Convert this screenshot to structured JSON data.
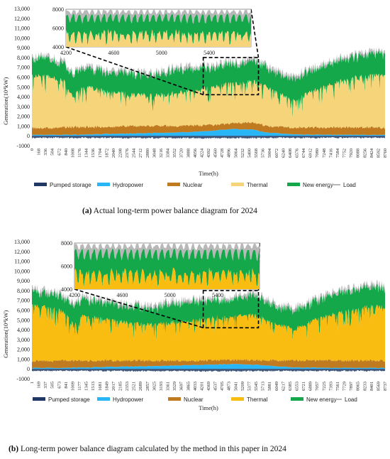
{
  "colors": {
    "pumped_storage": "#1f3864",
    "hydropower": "#29b6f6",
    "nuclear": "#c07a1f",
    "thermal_a": "#f6d57a",
    "thermal_b": "#f9bd12",
    "new_energy": "#14a84a",
    "load": "#b8b8b8"
  },
  "chart_data": [
    {
      "type": "area",
      "caption_label": "(a)",
      "caption_text": " Actual long-term power balance diagram for 2024",
      "ylabel": "Generation(10⁴kW)",
      "xlabel": "Time(h)",
      "ylim": [
        -1000,
        13000
      ],
      "yticks": [
        "13,000",
        "12,000",
        "11,000",
        "10,000",
        "9,000",
        "8,000",
        "7,000",
        "6,000",
        "5,000",
        "4,000",
        "3,000",
        "2,000",
        "1,000",
        "0",
        "-1000"
      ],
      "xticks": [
        "0",
        "168",
        "336",
        "504",
        "672",
        "840",
        "1008",
        "1176",
        "1344",
        "1536",
        "1704",
        "1872",
        "2040",
        "2208",
        "2376",
        "2544",
        "2712",
        "2880",
        "3048",
        "3216",
        "3384",
        "3552",
        "3720",
        "3888",
        "4056",
        "4224",
        "4392",
        "4560",
        "4728",
        "4896",
        "5064",
        "5232",
        "5400",
        "5568",
        "5736",
        "5904",
        "6072",
        "6240",
        "6408",
        "6576",
        "6744",
        "6912",
        "7080",
        "7248",
        "7416",
        "7584",
        "7752",
        "7920",
        "8088",
        "8256",
        "8424",
        "8592",
        "8760"
      ],
      "inset": {
        "yticks": [
          "8000",
          "6000",
          "4000"
        ],
        "xticks": [
          "4200",
          "4600",
          "5000",
          "5400"
        ],
        "ylim": [
          4000,
          8000
        ],
        "xlim": [
          4200,
          5750
        ]
      },
      "zoom_window": {
        "x": [
          4250,
          5620
        ],
        "y": [
          4200,
          8000
        ]
      },
      "legend": [
        "Pumped storage",
        "Hydropower",
        "Nuclear",
        "Thermal",
        "New energy",
        "Load"
      ],
      "series_profile": {
        "hours": [
          0,
          500,
          800,
          1000,
          1300,
          1800,
          2500,
          3000,
          3500,
          4000,
          4500,
          5000,
          5500,
          5800,
          6200,
          6500,
          7000,
          7500,
          8000,
          8500,
          8760
        ],
        "load": [
          8300,
          8100,
          7600,
          6500,
          7200,
          6800,
          6600,
          6500,
          7000,
          7200,
          7300,
          7600,
          8000,
          7300,
          6500,
          6200,
          7000,
          7900,
          8300,
          8700,
          8400
        ],
        "thermal_top": [
          6200,
          6000,
          5500,
          4000,
          5000,
          4600,
          4200,
          4100,
          4300,
          4600,
          5000,
          5300,
          5600,
          5000,
          4200,
          3600,
          4600,
          5400,
          5900,
          6200,
          6000
        ],
        "nuclear_top": [
          800,
          800,
          900,
          900,
          900,
          900,
          1000,
          1000,
          1000,
          1050,
          1100,
          1300,
          1350,
          1000,
          900,
          850,
          850,
          850,
          850,
          850,
          800
        ],
        "hydro_top": [
          60,
          60,
          60,
          70,
          80,
          150,
          200,
          250,
          300,
          350,
          500,
          650,
          600,
          300,
          200,
          100,
          80,
          60,
          60,
          60,
          60
        ],
        "pumped_min": [
          -120,
          -120,
          -120,
          -120,
          -130,
          -130,
          -140,
          -140,
          -140,
          -150,
          -150,
          -150,
          -150,
          -140,
          -130,
          -130,
          -130,
          -120,
          -120,
          -120,
          -120
        ]
      }
    },
    {
      "type": "area",
      "caption_label": "(b)",
      "caption_text": " Long-term power balance diagram calculated by the method in this paper in 2024",
      "ylabel": "Generation(10⁴kW)",
      "xlabel": "Time(h)",
      "ylim": [
        -1000,
        13000
      ],
      "yticks": [
        "13,000",
        "12,000",
        "11,000",
        "10,000",
        "9,000",
        "8,000",
        "7,000",
        "6,000",
        "5,000",
        "4,000",
        "3,000",
        "2,000",
        "1,000",
        "0",
        "-1000"
      ],
      "xticks": [
        "1",
        "169",
        "337",
        "505",
        "673",
        "841",
        "1009",
        "1177",
        "1345",
        "1513",
        "1681",
        "1849",
        "2017",
        "2185",
        "2353",
        "2521",
        "2689",
        "2857",
        "3025",
        "3193",
        "3361",
        "3529",
        "3697",
        "3865",
        "4033",
        "4201",
        "4369",
        "4537",
        "4705",
        "4873",
        "5041",
        "5209",
        "5377",
        "5545",
        "5713",
        "5881",
        "6049",
        "6217",
        "6385",
        "6553",
        "6721",
        "6889",
        "7057",
        "7225",
        "7393",
        "7561",
        "7729",
        "7897",
        "8065",
        "8233",
        "8401",
        "8569",
        "8737"
      ],
      "inset": {
        "yticks": [
          "8000",
          "6000",
          "4000"
        ],
        "xticks": [
          "4200",
          "4600",
          "5000",
          "5400"
        ],
        "ylim": [
          4000,
          8000
        ],
        "xlim": [
          4200,
          5750
        ]
      },
      "zoom_window": {
        "x": [
          4250,
          5620
        ],
        "y": [
          4200,
          8000
        ]
      },
      "legend": [
        "Pumped storage",
        "Hydropower",
        "Nuclear",
        "Thermal",
        "New energy",
        "Load"
      ],
      "series_profile": {
        "hours": [
          0,
          500,
          800,
          1000,
          1300,
          1800,
          2500,
          3000,
          3500,
          4000,
          4500,
          5000,
          5500,
          5800,
          6200,
          6500,
          7000,
          7500,
          8000,
          8500,
          8760
        ],
        "load": [
          8200,
          8000,
          7600,
          6800,
          7400,
          7000,
          6700,
          6500,
          7000,
          7200,
          7300,
          7500,
          7900,
          7300,
          6500,
          6300,
          7100,
          8000,
          8400,
          8800,
          8500
        ],
        "thermal_top": [
          6400,
          6200,
          5800,
          4600,
          5400,
          5000,
          4700,
          4500,
          4700,
          4900,
          5200,
          5400,
          5600,
          5100,
          4400,
          4000,
          4900,
          5600,
          6100,
          6400,
          6200
        ],
        "nuclear_top": [
          800,
          800,
          850,
          850,
          850,
          850,
          850,
          850,
          850,
          850,
          900,
          900,
          900,
          850,
          850,
          850,
          850,
          850,
          850,
          850,
          800
        ],
        "hydro_top": [
          60,
          60,
          60,
          80,
          100,
          150,
          200,
          250,
          300,
          350,
          400,
          450,
          400,
          300,
          200,
          100,
          80,
          60,
          60,
          60,
          60
        ],
        "pumped_min": [
          -120,
          -120,
          -120,
          -120,
          -130,
          -130,
          -140,
          -140,
          -140,
          -150,
          -150,
          -150,
          -150,
          -140,
          -130,
          -130,
          -130,
          -120,
          -120,
          -120,
          -120
        ]
      }
    }
  ]
}
